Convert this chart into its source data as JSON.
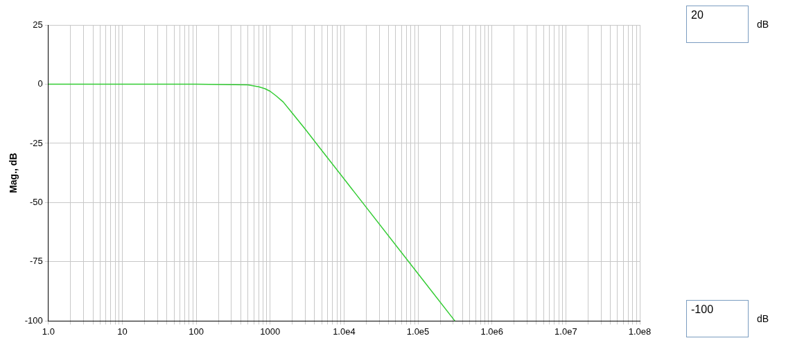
{
  "chart_data": {
    "type": "line",
    "ylabel": "Mag., dB",
    "log": "x",
    "xlim": [
      1,
      100000000
    ],
    "xticks": [
      {
        "value": 1,
        "label": "1.0"
      },
      {
        "value": 2,
        "label": null
      },
      {
        "value": 3,
        "label": null
      },
      {
        "value": 4,
        "label": null
      },
      {
        "value": 5,
        "label": null
      },
      {
        "value": 6,
        "label": null
      },
      {
        "value": 7,
        "label": null
      },
      {
        "value": 8,
        "label": null
      },
      {
        "value": 9,
        "label": null
      },
      {
        "value": 10,
        "label": "10"
      },
      {
        "value": 20,
        "label": null
      },
      {
        "value": 30,
        "label": null
      },
      {
        "value": 40,
        "label": null
      },
      {
        "value": 50,
        "label": null
      },
      {
        "value": 60,
        "label": null
      },
      {
        "value": 70,
        "label": null
      },
      {
        "value": 80,
        "label": null
      },
      {
        "value": 90,
        "label": null
      },
      {
        "value": 100,
        "label": "100"
      },
      {
        "value": 200,
        "label": null
      },
      {
        "value": 300,
        "label": null
      },
      {
        "value": 400,
        "label": null
      },
      {
        "value": 500,
        "label": null
      },
      {
        "value": 600,
        "label": null
      },
      {
        "value": 700,
        "label": null
      },
      {
        "value": 800,
        "label": null
      },
      {
        "value": 900,
        "label": null
      },
      {
        "value": 1000,
        "label": "1000"
      },
      {
        "value": 2000,
        "label": null
      },
      {
        "value": 3000,
        "label": null
      },
      {
        "value": 4000,
        "label": null
      },
      {
        "value": 5000,
        "label": null
      },
      {
        "value": 6000,
        "label": null
      },
      {
        "value": 7000,
        "label": null
      },
      {
        "value": 8000,
        "label": null
      },
      {
        "value": 9000,
        "label": null
      },
      {
        "value": 10000,
        "label": "1.0e4"
      },
      {
        "value": 20000,
        "label": null
      },
      {
        "value": 30000,
        "label": null
      },
      {
        "value": 40000,
        "label": null
      },
      {
        "value": 50000,
        "label": null
      },
      {
        "value": 60000,
        "label": null
      },
      {
        "value": 70000,
        "label": null
      },
      {
        "value": 80000,
        "label": null
      },
      {
        "value": 90000,
        "label": null
      },
      {
        "value": 100000,
        "label": "1.0e5"
      },
      {
        "value": 200000,
        "label": null
      },
      {
        "value": 300000,
        "label": null
      },
      {
        "value": 400000,
        "label": null
      },
      {
        "value": 500000,
        "label": null
      },
      {
        "value": 600000,
        "label": null
      },
      {
        "value": 700000,
        "label": null
      },
      {
        "value": 800000,
        "label": null
      },
      {
        "value": 900000,
        "label": null
      },
      {
        "value": 1000000,
        "label": "1.0e6"
      },
      {
        "value": 2000000,
        "label": null
      },
      {
        "value": 3000000,
        "label": null
      },
      {
        "value": 4000000,
        "label": null
      },
      {
        "value": 5000000,
        "label": null
      },
      {
        "value": 6000000,
        "label": null
      },
      {
        "value": 7000000,
        "label": null
      },
      {
        "value": 8000000,
        "label": null
      },
      {
        "value": 9000000,
        "label": null
      },
      {
        "value": 10000000,
        "label": "1.0e7"
      },
      {
        "value": 20000000,
        "label": null
      },
      {
        "value": 30000000,
        "label": null
      },
      {
        "value": 40000000,
        "label": null
      },
      {
        "value": 50000000,
        "label": null
      },
      {
        "value": 60000000,
        "label": null
      },
      {
        "value": 70000000,
        "label": null
      },
      {
        "value": 80000000,
        "label": null
      },
      {
        "value": 90000000,
        "label": null
      },
      {
        "value": 100000000,
        "label": "1.0e8"
      }
    ],
    "ylim": [
      -100,
      25
    ],
    "yticks": [
      -100,
      -75,
      -50,
      -25,
      0,
      25
    ],
    "grid": true,
    "marker": "none",
    "x": [
      1,
      100,
      500,
      700,
      850,
      1000,
      1200,
      1500,
      2000,
      3000,
      5000,
      10000,
      100000,
      316000
    ],
    "series": [
      {
        "color": "#33cc33",
        "values": [
          0,
          0,
          -0.3,
          -1.1,
          -1.9,
          -3,
          -4.9,
          -7.5,
          -12.3,
          -19.1,
          -28,
          -40,
          -80,
          -100
        ]
      }
    ],
    "annotations": [
      "20",
      "dB",
      "-100",
      "dB"
    ]
  }
}
